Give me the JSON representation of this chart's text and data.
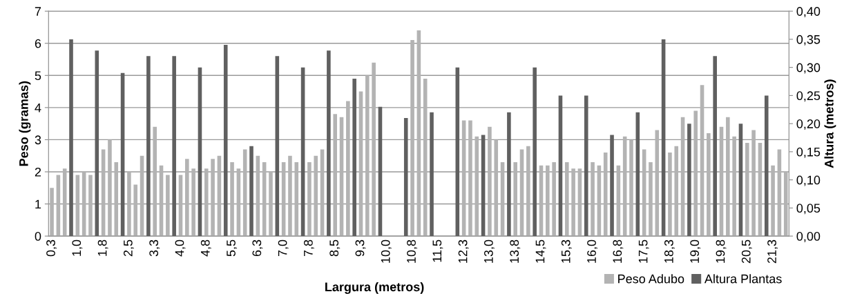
{
  "chart_data": {
    "type": "bar",
    "xlabel": "Largura (metros)",
    "ylabel": "Peso (gramas)",
    "y2label": "Altura (metros)",
    "categories": [
      "0,3",
      null,
      null,
      null,
      "1,0",
      null,
      null,
      null,
      "1,8",
      null,
      null,
      null,
      "2,5",
      null,
      null,
      null,
      "3,3",
      null,
      null,
      null,
      "4,0",
      null,
      null,
      null,
      "4,8",
      null,
      null,
      null,
      "5,5",
      null,
      null,
      null,
      "6,3",
      null,
      null,
      null,
      "7,0",
      null,
      null,
      null,
      "7,8",
      null,
      null,
      null,
      "8,5",
      null,
      null,
      null,
      "9,3",
      null,
      null,
      null,
      "10,0",
      null,
      null,
      null,
      "10,8",
      null,
      null,
      null,
      "11,5",
      null,
      null,
      null,
      "12,3",
      null,
      null,
      null,
      "13,0",
      null,
      null,
      null,
      "13,8",
      null,
      null,
      null,
      "14,5",
      null,
      null,
      null,
      "15,3",
      null,
      null,
      null,
      "16,0",
      null,
      null,
      null,
      "16,8",
      null,
      null,
      null,
      "17,5",
      null,
      null,
      null,
      "18,3",
      null,
      null,
      null,
      "19,0",
      null,
      null,
      null,
      "19,8",
      null,
      null,
      null,
      "20,5",
      null,
      null,
      null,
      "21,3",
      null,
      null
    ],
    "series": [
      {
        "name": "Peso Adubo",
        "color": "#b3b3b3",
        "values": [
          1.5,
          1.9,
          2.1,
          null,
          1.9,
          2.0,
          1.9,
          null,
          2.7,
          3.0,
          2.3,
          null,
          2.0,
          1.6,
          2.5,
          null,
          3.4,
          2.2,
          1.9,
          null,
          1.9,
          2.4,
          2.1,
          null,
          2.1,
          2.4,
          2.5,
          null,
          2.3,
          2.1,
          2.7,
          null,
          2.5,
          2.3,
          2.0,
          null,
          2.3,
          2.5,
          2.3,
          null,
          2.3,
          2.5,
          2.7,
          null,
          3.8,
          3.7,
          4.2,
          null,
          4.5,
          5.0,
          5.4,
          null,
          null,
          null,
          null,
          null,
          6.1,
          6.4,
          4.9,
          null,
          null,
          null,
          null,
          null,
          3.6,
          3.6,
          3.1,
          null,
          3.4,
          3.0,
          2.3,
          null,
          2.3,
          2.7,
          2.8,
          null,
          2.2,
          2.2,
          2.3,
          null,
          2.3,
          2.1,
          2.1,
          null,
          2.3,
          2.2,
          2.6,
          null,
          2.2,
          3.1,
          3.0,
          null,
          2.7,
          2.3,
          3.3,
          null,
          2.6,
          2.8,
          3.7,
          null,
          3.9,
          4.7,
          3.2,
          null,
          3.4,
          3.7,
          3.1,
          null,
          2.9,
          3.3,
          2.9,
          null,
          2.2,
          2.7,
          2.0
        ]
      },
      {
        "name": "Altura Plantas",
        "color": "#606060",
        "axis": "y2",
        "values": [
          null,
          null,
          null,
          0.35,
          null,
          null,
          null,
          0.33,
          null,
          null,
          null,
          0.29,
          null,
          null,
          null,
          0.32,
          null,
          null,
          null,
          0.32,
          null,
          null,
          null,
          0.3,
          null,
          null,
          null,
          0.34,
          null,
          null,
          null,
          0.16,
          null,
          null,
          null,
          0.32,
          null,
          null,
          null,
          0.3,
          null,
          null,
          null,
          0.33,
          null,
          null,
          null,
          0.28,
          null,
          null,
          null,
          0.23,
          null,
          null,
          null,
          0.21,
          null,
          null,
          null,
          0.22,
          null,
          null,
          null,
          0.3,
          null,
          null,
          null,
          0.18,
          null,
          null,
          null,
          0.22,
          null,
          null,
          null,
          0.3,
          null,
          null,
          null,
          0.25,
          null,
          null,
          null,
          0.25,
          null,
          null,
          null,
          0.18,
          null,
          null,
          null,
          0.22,
          null,
          null,
          null,
          0.35,
          null,
          null,
          null,
          0.2,
          null,
          null,
          null,
          0.32,
          null,
          null,
          null,
          0.2,
          null,
          null,
          null,
          0.25,
          null,
          null,
          null
        ]
      }
    ],
    "ylim": [
      0,
      7
    ],
    "yticks": [
      0,
      1,
      2,
      3,
      4,
      5,
      6,
      7
    ],
    "y2lim": [
      0,
      0.4
    ],
    "y2ticks": [
      {
        "value": 0,
        "label": "0,00"
      },
      {
        "value": 0.05,
        "label": "0,05"
      },
      {
        "value": 0.1,
        "label": "0,10"
      },
      {
        "value": 0.15,
        "label": "0,15"
      },
      {
        "value": 0.2,
        "label": "0,20"
      },
      {
        "value": 0.25,
        "label": "0,25"
      },
      {
        "value": 0.3,
        "label": "0,30"
      },
      {
        "value": 0.35,
        "label": "0,35"
      },
      {
        "value": 0.4,
        "label": "0,40"
      }
    ],
    "grid": "y",
    "legend": "bottom right"
  }
}
